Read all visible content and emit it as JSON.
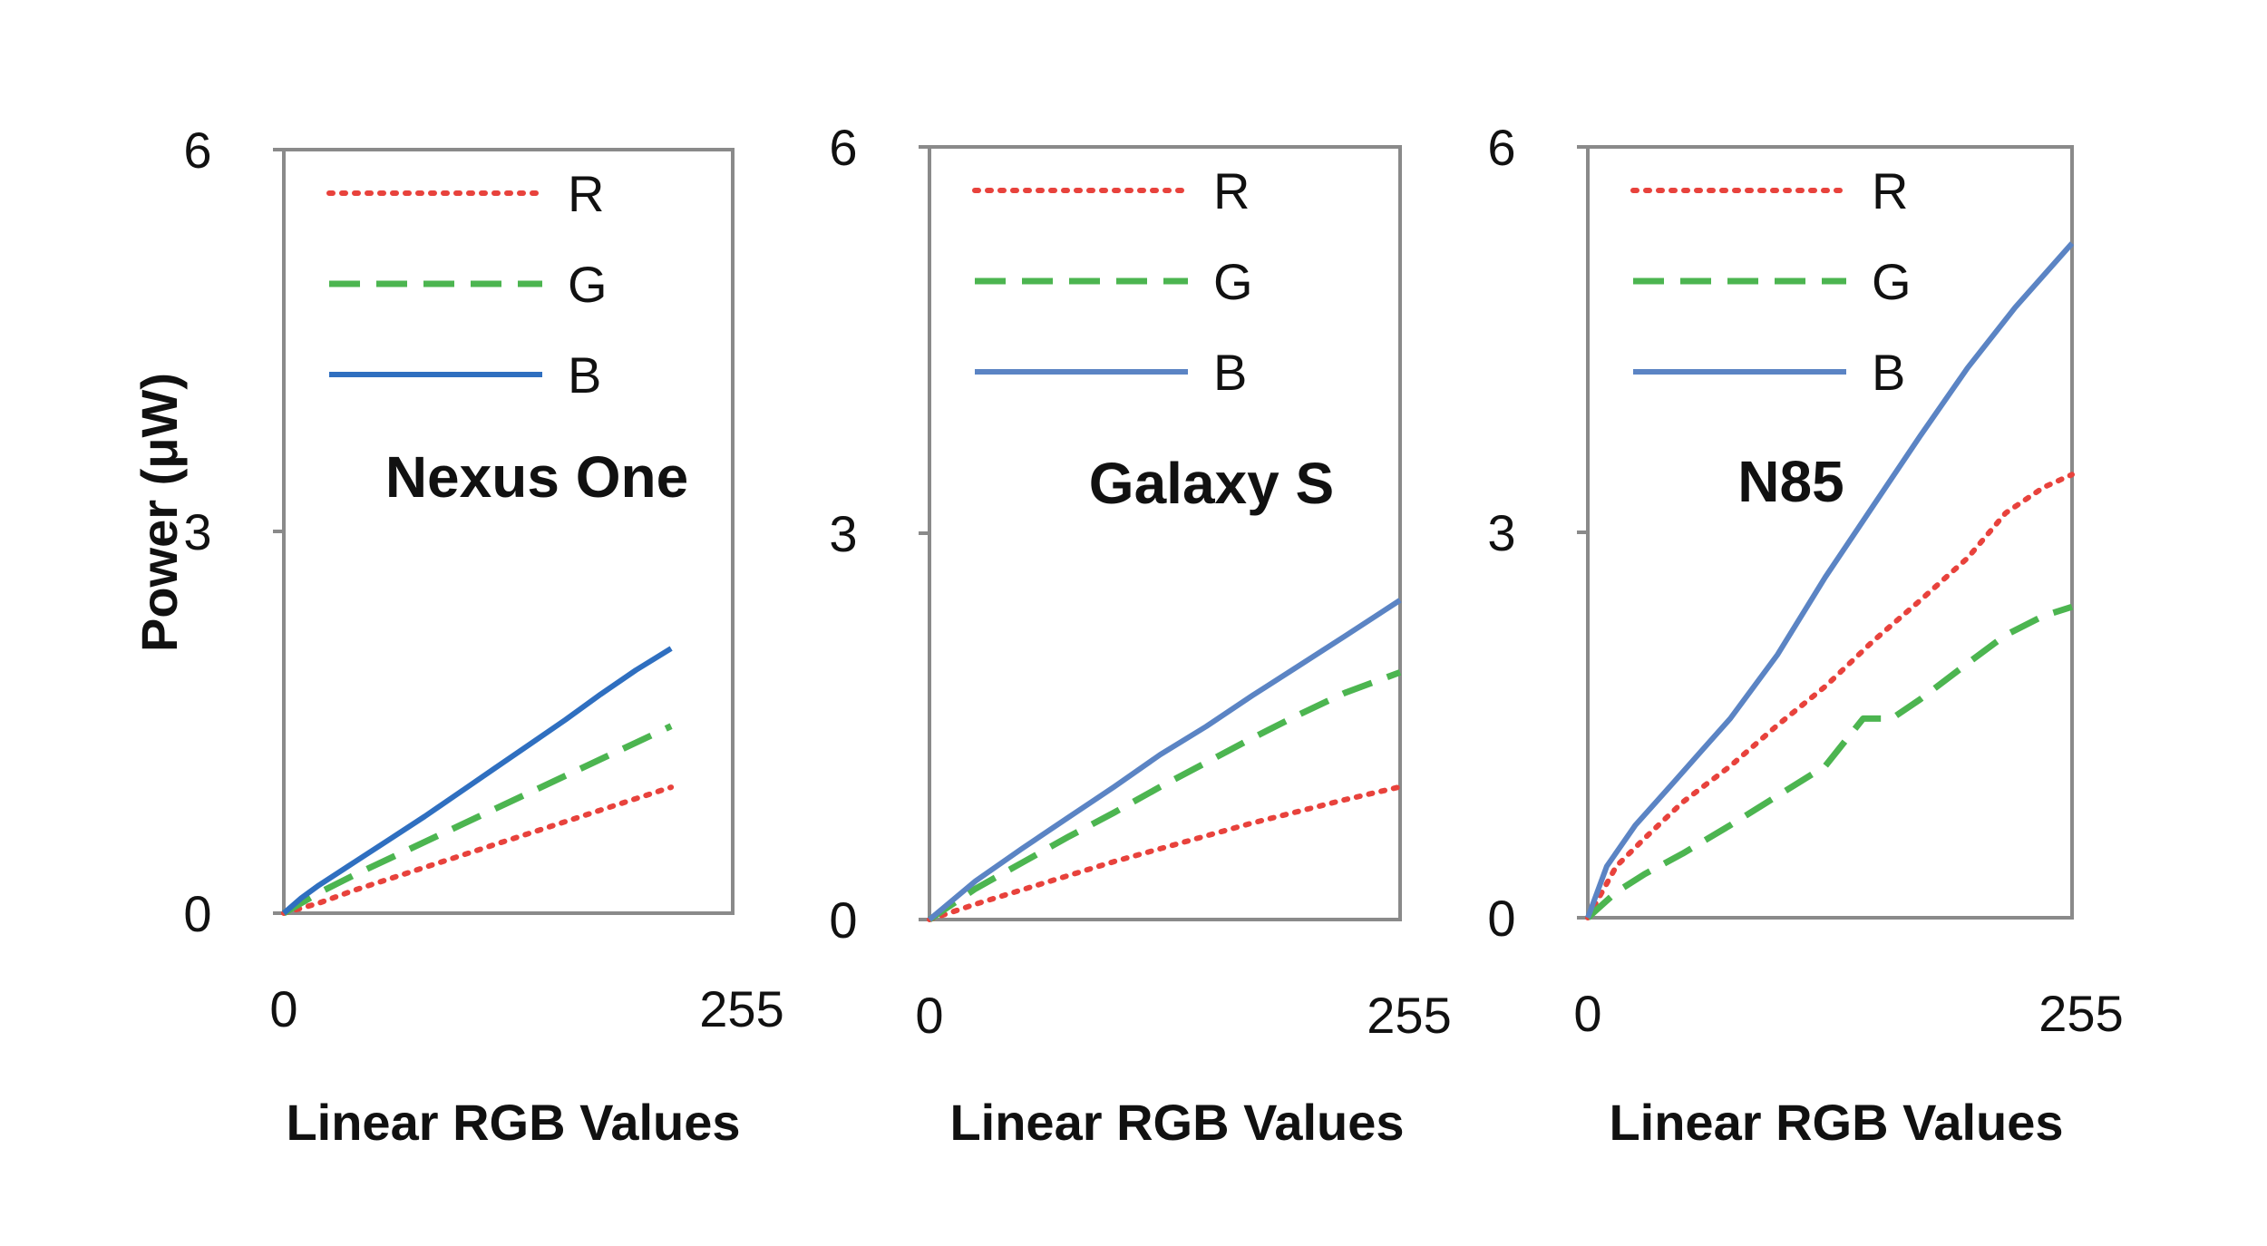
{
  "chart_data": [
    {
      "type": "line",
      "title": "Nexus One",
      "xlabel": "Linear RGB Values",
      "ylabel": "Power (μW)",
      "xlim": [
        0,
        255
      ],
      "ylim": [
        0,
        6
      ],
      "x_ticks": [
        "0",
        "255"
      ],
      "y_ticks": [
        "0",
        "3",
        "6"
      ],
      "legend": {
        "position": "top-left",
        "entries": [
          "R",
          "G",
          "B"
        ]
      },
      "grid": false,
      "series": [
        {
          "name": "R",
          "color": "#e8423c",
          "dash": "dotted",
          "x": [
            0,
            20,
            40,
            60,
            80,
            100,
            120,
            140,
            160,
            180,
            200,
            220
          ],
          "y": [
            0,
            0.08,
            0.18,
            0.27,
            0.36,
            0.45,
            0.54,
            0.63,
            0.72,
            0.81,
            0.9,
            0.99
          ]
        },
        {
          "name": "G",
          "color": "#4cb550",
          "dash": "dashed",
          "x": [
            0,
            20,
            40,
            60,
            80,
            100,
            120,
            140,
            160,
            180,
            200,
            220
          ],
          "y": [
            0,
            0.16,
            0.3,
            0.43,
            0.56,
            0.69,
            0.82,
            0.95,
            1.08,
            1.21,
            1.34,
            1.47
          ]
        },
        {
          "name": "B",
          "color": "#2f6fc0",
          "dash": "solid",
          "x": [
            0,
            10,
            20,
            40,
            60,
            80,
            100,
            120,
            140,
            160,
            180,
            200,
            220
          ],
          "y": [
            0,
            0.12,
            0.22,
            0.4,
            0.58,
            0.76,
            0.95,
            1.14,
            1.33,
            1.52,
            1.72,
            1.91,
            2.08
          ]
        }
      ]
    },
    {
      "type": "line",
      "title": "Galaxy S",
      "xlabel": "Linear RGB Values",
      "ylabel": "",
      "xlim": [
        0,
        255
      ],
      "ylim": [
        0,
        6
      ],
      "x_ticks": [
        "0",
        "255"
      ],
      "y_ticks": [
        "0",
        "3",
        "6"
      ],
      "legend": {
        "position": "top-left",
        "entries": [
          "R",
          "G",
          "B"
        ]
      },
      "grid": false,
      "series": [
        {
          "name": "R",
          "color": "#e8423c",
          "dash": "dotted",
          "x": [
            0,
            25,
            50,
            75,
            100,
            125,
            150,
            175,
            200,
            225,
            255
          ],
          "y": [
            0,
            0.12,
            0.23,
            0.34,
            0.45,
            0.55,
            0.65,
            0.75,
            0.84,
            0.93,
            1.03
          ]
        },
        {
          "name": "G",
          "color": "#4cb550",
          "dash": "dashed",
          "x": [
            0,
            25,
            50,
            75,
            100,
            125,
            150,
            175,
            200,
            225,
            255
          ],
          "y": [
            0,
            0.24,
            0.44,
            0.64,
            0.83,
            1.03,
            1.22,
            1.41,
            1.59,
            1.76,
            1.92
          ]
        },
        {
          "name": "B",
          "color": "#5b84c4",
          "dash": "solid",
          "x": [
            0,
            25,
            50,
            75,
            100,
            125,
            150,
            175,
            200,
            225,
            255
          ],
          "y": [
            0,
            0.3,
            0.55,
            0.79,
            1.03,
            1.28,
            1.5,
            1.74,
            1.97,
            2.2,
            2.48
          ]
        }
      ]
    },
    {
      "type": "line",
      "title": "N85",
      "xlabel": "Linear RGB Values",
      "ylabel": "",
      "xlim": [
        0,
        255
      ],
      "ylim": [
        0,
        6
      ],
      "x_ticks": [
        "0",
        "255"
      ],
      "y_ticks": [
        "0",
        "3",
        "6"
      ],
      "legend": {
        "position": "top-left",
        "entries": [
          "R",
          "G",
          "B"
        ]
      },
      "grid": false,
      "series": [
        {
          "name": "R",
          "color": "#e8423c",
          "dash": "dotted",
          "x": [
            0,
            15,
            30,
            50,
            75,
            100,
            125,
            150,
            175,
            200,
            220,
            240,
            255
          ],
          "y": [
            0,
            0.4,
            0.62,
            0.9,
            1.18,
            1.5,
            1.8,
            2.15,
            2.47,
            2.8,
            3.15,
            3.35,
            3.45
          ]
        },
        {
          "name": "G",
          "color": "#4cb550",
          "dash": "dashed",
          "x": [
            0,
            15,
            30,
            50,
            75,
            100,
            125,
            145,
            160,
            175,
            200,
            220,
            240,
            255
          ],
          "y": [
            0,
            0.2,
            0.34,
            0.5,
            0.72,
            0.95,
            1.18,
            1.55,
            1.55,
            1.7,
            1.98,
            2.2,
            2.35,
            2.42
          ]
        },
        {
          "name": "B",
          "color": "#5b84c4",
          "dash": "solid",
          "x": [
            0,
            10,
            25,
            45,
            60,
            75,
            100,
            125,
            150,
            175,
            200,
            225,
            255
          ],
          "y": [
            0,
            0.4,
            0.72,
            1.05,
            1.3,
            1.55,
            2.05,
            2.65,
            3.2,
            3.75,
            4.28,
            4.75,
            5.25
          ]
        }
      ]
    }
  ]
}
